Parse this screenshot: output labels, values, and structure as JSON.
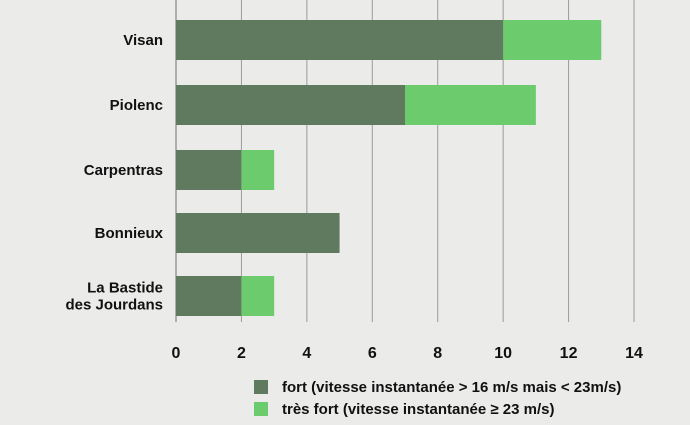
{
  "colors": {
    "fort": "#5f7a5f",
    "tres_fort": "#6ccb6c",
    "grid": "#9a9a9a",
    "background": "#ebebea"
  },
  "chart_data": {
    "type": "bar",
    "orientation": "horizontal",
    "stacked": true,
    "categories": [
      "Visan",
      "Piolenc",
      "Carpentras",
      "Bonnieux",
      "La Bastide des Jourdans"
    ],
    "category_lines": [
      [
        "Visan"
      ],
      [
        "Piolenc"
      ],
      [
        "Carpentras"
      ],
      [
        "Bonnieux"
      ],
      [
        "La Bastide",
        "des Jourdans"
      ]
    ],
    "series": [
      {
        "name": "fort (vitesse  instantanée  > 16 m/s mais < 23m/s)",
        "values": [
          10,
          7,
          2,
          5,
          2
        ]
      },
      {
        "name": "très fort  (vitesse instantanée ≥ 23 m/s)",
        "values": [
          3,
          4,
          1,
          0,
          1
        ]
      }
    ],
    "xlim": [
      0,
      14
    ],
    "xticks": [
      0,
      2,
      4,
      6,
      8,
      10,
      12,
      14
    ],
    "grid": true,
    "legend_position": "bottom"
  }
}
